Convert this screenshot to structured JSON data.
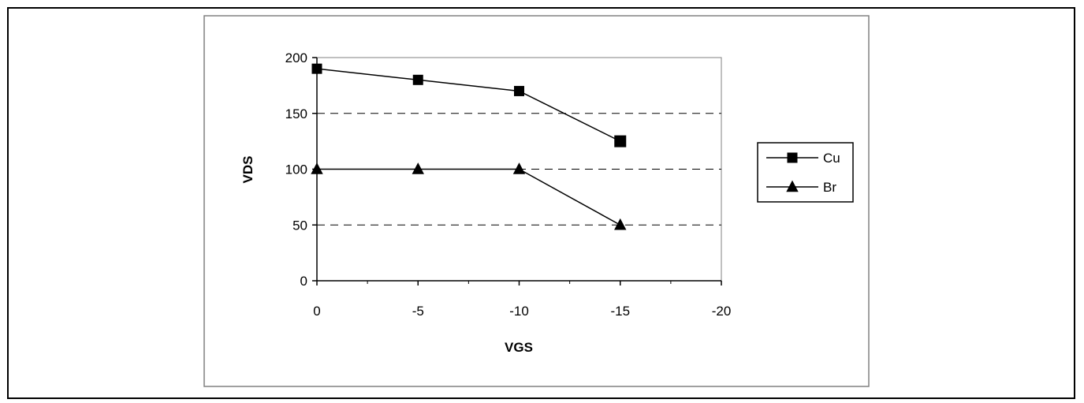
{
  "chart_data": {
    "type": "line",
    "title": "",
    "xlabel": "VGS",
    "ylabel": "VDS",
    "x": [
      0,
      -5,
      -10,
      -15
    ],
    "xlim": [
      0,
      -20
    ],
    "ylim": [
      0,
      200
    ],
    "x_ticks": [
      0,
      -5,
      -10,
      -15,
      -20
    ],
    "x_tick_labels": [
      "0",
      "-5",
      "-10",
      "-15",
      "-20"
    ],
    "y_ticks": [
      0,
      50,
      100,
      150,
      200
    ],
    "y_tick_labels": [
      "0",
      "50",
      "100",
      "150",
      "200"
    ],
    "grid": "dashed horizontal",
    "legend": "right",
    "series": [
      {
        "name": "Cu",
        "marker": "square",
        "color": "#000000",
        "values": [
          190,
          180,
          170,
          125
        ]
      },
      {
        "name": "Br",
        "marker": "triangle",
        "color": "#000000",
        "values": [
          100,
          100,
          100,
          50
        ]
      }
    ]
  }
}
